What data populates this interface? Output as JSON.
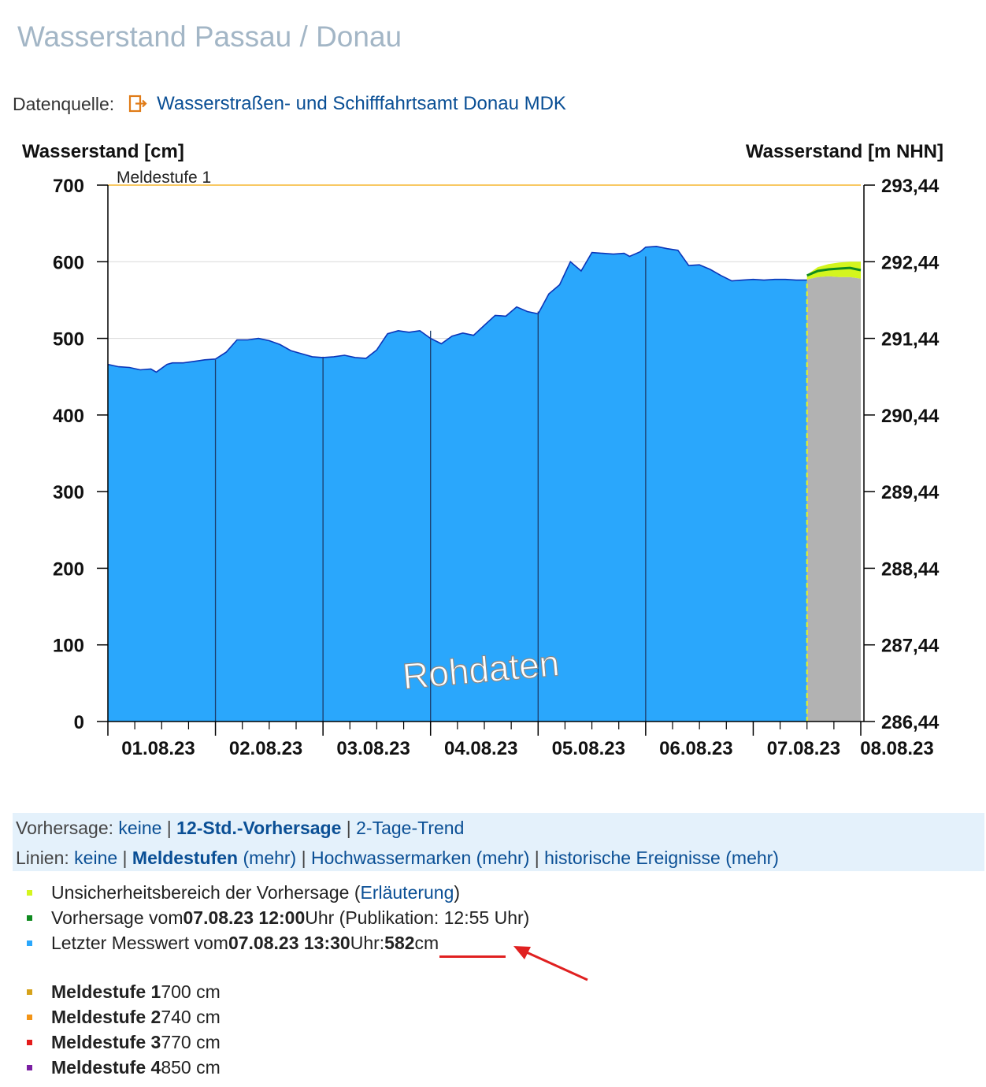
{
  "page": {
    "title": "Wasserstand Passau / Donau",
    "source_label": "Datenquelle:",
    "source_link": "Wasserstraßen- und Schifffahrtsamt Donau MDK"
  },
  "chart_data": {
    "type": "area",
    "ylabel_left": "Wasserstand [cm]",
    "ylabel_right": "Wasserstand [m NHN]",
    "ylim": [
      0,
      700
    ],
    "yticks_left": [
      "0",
      "100",
      "200",
      "300",
      "400",
      "500",
      "600",
      "700"
    ],
    "yticks_right": [
      "286,44",
      "287,44",
      "288,44",
      "289,44",
      "290,44",
      "291,44",
      "292,44",
      "293,44"
    ],
    "xlim": [
      0,
      7
    ],
    "xticks": [
      "01.08.23",
      "02.08.23",
      "03.08.23",
      "04.08.23",
      "05.08.23",
      "06.08.23",
      "07.08.23",
      "08.08.23"
    ],
    "threshold_line": {
      "label": "Meldestufe 1",
      "value": 700,
      "color": "#f5b731"
    },
    "watermark": "Rohdaten",
    "measured_series": {
      "color": "#2aa7fc",
      "line_color": "#0b35b8",
      "x": [
        0.0,
        0.1,
        0.2,
        0.3,
        0.4,
        0.45,
        0.55,
        0.6,
        0.7,
        0.8,
        0.9,
        1.0,
        1.1,
        1.2,
        1.3,
        1.4,
        1.5,
        1.6,
        1.7,
        1.8,
        1.9,
        2.0,
        2.1,
        2.2,
        2.3,
        2.4,
        2.5,
        2.6,
        2.7,
        2.8,
        2.9,
        3.0,
        3.1,
        3.2,
        3.3,
        3.4,
        3.5,
        3.6,
        3.7,
        3.8,
        3.9,
        4.0,
        4.1,
        4.2,
        4.3,
        4.4,
        4.5,
        4.6,
        4.7,
        4.8,
        4.85,
        4.95,
        5.0,
        5.1,
        5.2,
        5.3,
        5.4,
        5.5,
        5.6,
        5.7,
        5.8,
        5.9,
        6.0,
        6.1,
        6.2,
        6.3,
        6.4,
        6.5
      ],
      "y": [
        466,
        463,
        462,
        459,
        460,
        456,
        466,
        468,
        468,
        470,
        472,
        473,
        482,
        498,
        498,
        500,
        497,
        492,
        484,
        480,
        476,
        475,
        476,
        478,
        475,
        474,
        485,
        506,
        510,
        508,
        510,
        500,
        493,
        503,
        507,
        504,
        517,
        530,
        529,
        541,
        535,
        532,
        558,
        570,
        600,
        588,
        612,
        611,
        610,
        611,
        607,
        613,
        619,
        620,
        617,
        615,
        595,
        596,
        590,
        582,
        575,
        576,
        577,
        576,
        577,
        577,
        576,
        576
      ]
    },
    "forecast_series": {
      "color": "#0f8a1f",
      "uncertainty_color": "#d4f51e",
      "x": [
        6.5,
        6.6,
        6.7,
        6.8,
        6.9,
        7.0
      ],
      "y": [
        582,
        588,
        590,
        591,
        592,
        589
      ],
      "y_low": [
        577,
        580,
        581,
        580,
        580,
        578
      ],
      "y_high": [
        583,
        593,
        597,
        599,
        600,
        600
      ]
    },
    "forecast_window": {
      "start": 6.5,
      "end": 7.0,
      "color": "#b2b2b2"
    }
  },
  "panel": {
    "forecast_label": "Vorhersage:",
    "forecast_opt_none": "keine",
    "forecast_opt_12h": "12-Std.-Vorhersage",
    "forecast_opt_2d": "2-Tage-Trend",
    "lines_label": "Linien:",
    "lines_opt_none": "keine",
    "lines_opt_levels": "Meldestufen",
    "more_1": "(mehr)",
    "lines_opt_hw": "Hochwassermarken",
    "more_2": "(mehr)",
    "lines_opt_hist": "historische Ereignisse",
    "more_3": "(mehr)",
    "sep": "|"
  },
  "legend": {
    "items": [
      {
        "text_a": "Unsicherheitsbereich der Vorhersage (",
        "link": "Erläuterung",
        "text_b": ")",
        "color": "#d4f51e"
      },
      {
        "text_a": "Vorhersage vom ",
        "bold": "07.08.23 12:00",
        "text_b": " Uhr (Publikation: 12:55 Uhr)",
        "color": "#0f8a1f"
      },
      {
        "text_a": "Letzter Messwert vom ",
        "bold": "07.08.23 13:30",
        "text_b": " Uhr: ",
        "value_bold": "582",
        "unit": " cm",
        "color": "#2aa7fc"
      }
    ],
    "levels": [
      {
        "name": "Meldestufe 1",
        "value": " 700 cm",
        "color": "#d6a21a"
      },
      {
        "name": "Meldestufe 2",
        "value": " 740 cm",
        "color": "#f39416"
      },
      {
        "name": "Meldestufe 3",
        "value": " 770 cm",
        "color": "#e41b1b"
      },
      {
        "name": "Meldestufe 4",
        "value": " 850 cm",
        "color": "#7b1fa2"
      }
    ]
  }
}
